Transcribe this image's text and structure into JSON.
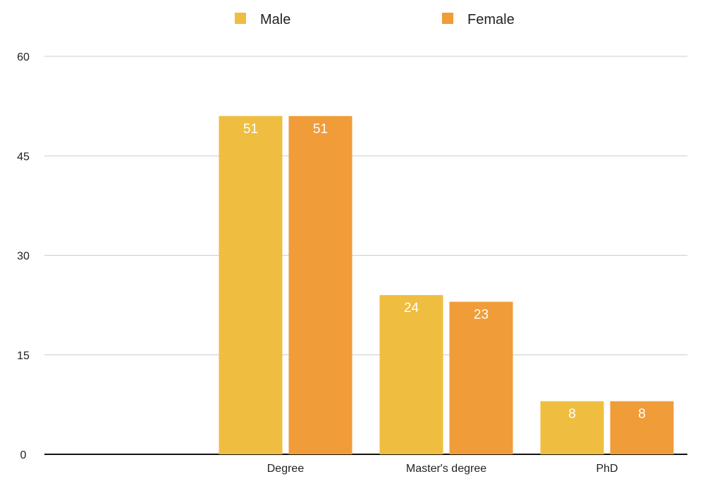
{
  "chart_data": {
    "type": "bar",
    "categories": [
      "",
      "Degree",
      "Master's degree",
      "PhD"
    ],
    "series": [
      {
        "name": "Male",
        "color": "#EFBE40",
        "values": [
          0,
          51,
          24,
          8
        ]
      },
      {
        "name": "Female",
        "color": "#F09C38",
        "values": [
          0,
          51,
          23,
          8
        ]
      }
    ],
    "xlabel": "",
    "ylabel": "",
    "ylim": [
      0,
      60
    ],
    "yticks": [
      "0",
      "15",
      "30",
      "45",
      "60"
    ],
    "grid": true,
    "legend_position": "top",
    "data_labels": true
  }
}
